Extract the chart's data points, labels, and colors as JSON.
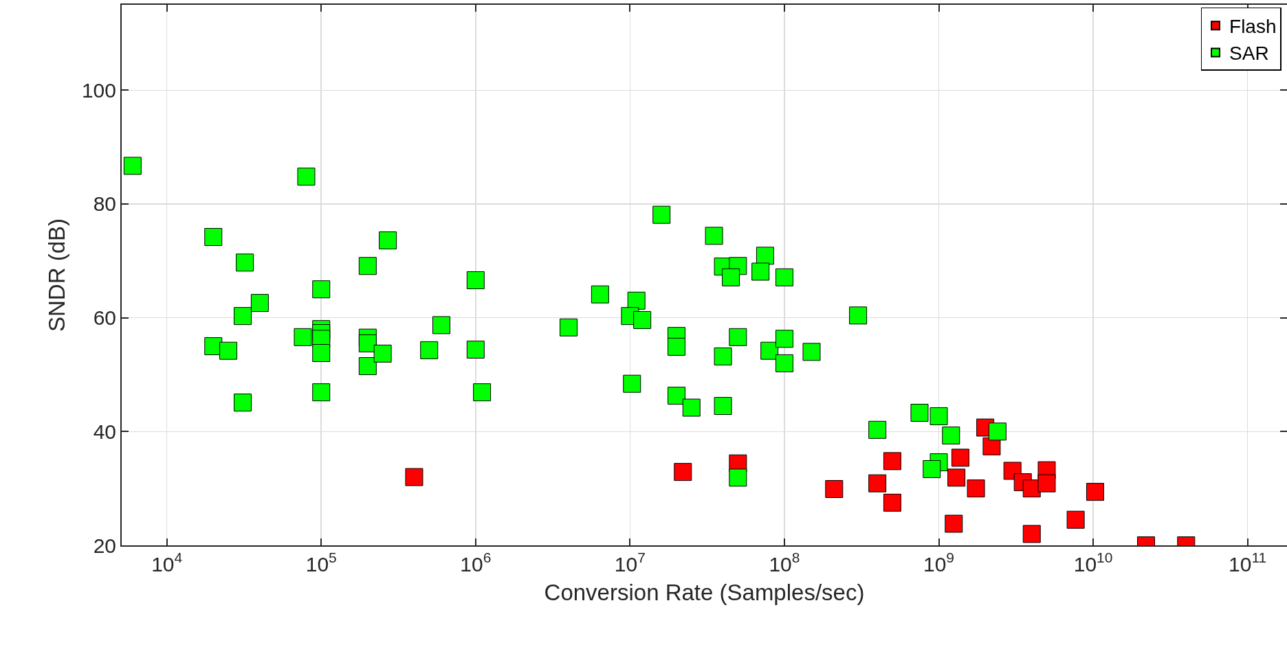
{
  "chart_data": {
    "type": "scatter",
    "xlabel": "Conversion Rate (Samples/sec)",
    "ylabel": "SNDR (dB)",
    "log": "x",
    "grid": true,
    "legend": "top right",
    "marker": "square",
    "xlim": [
      5100,
      180000000000
    ],
    "ylim": [
      20,
      115
    ],
    "xticks": [
      {
        "value": 10000,
        "label": "10$^{4}$"
      },
      {
        "value": 100000,
        "label": "10$^{5}$"
      },
      {
        "value": 1000000,
        "label": "10$^{6}$"
      },
      {
        "value": 10000000,
        "label": "10$^{7}$"
      },
      {
        "value": 100000000,
        "label": "10$^{8}$"
      },
      {
        "value": 1000000000,
        "label": "10$^{9}$"
      },
      {
        "value": 10000000000,
        "label": "10$^{10}$"
      },
      {
        "value": 100000000000,
        "label": "10$^{11}$"
      }
    ],
    "yticks": [
      20,
      40,
      60,
      80,
      100
    ],
    "series": [
      {
        "name": "Flash",
        "color": "#ff0000",
        "x": [
          400000,
          22000000,
          50000000,
          210000000,
          400000000,
          500000000,
          500000000,
          2000000000,
          2200000000,
          1380000000,
          1300000000,
          1740000000,
          3000000000,
          3500000000,
          4000000000,
          5000000000,
          5000000000,
          1250000000,
          4000000000,
          7700000000,
          10300000000,
          22000000000,
          40000000000
        ],
        "values": [
          32.0,
          32.9,
          34.4,
          29.9,
          30.9,
          34.8,
          27.5,
          40.7,
          37.4,
          35.4,
          31.9,
          30.0,
          33.1,
          31.1,
          30.0,
          33.2,
          30.9,
          23.8,
          22.0,
          24.5,
          29.4,
          20.0,
          20.0
        ]
      },
      {
        "name": "SAR",
        "color": "#00ff00",
        "x": [
          6000,
          80000,
          20000,
          32000,
          270000,
          200000,
          100000,
          1000000,
          40000,
          31000,
          600000,
          20000,
          25000,
          76000,
          100000,
          100000,
          100000,
          100000,
          100000,
          31000,
          200000,
          200000,
          200000,
          250000,
          500000,
          1000000,
          1100000,
          16000000,
          35000000,
          75000000,
          40000000,
          50000000,
          45000000,
          70000000,
          100000000,
          6400000,
          11000000,
          10000000,
          12000000,
          4000000,
          300000000,
          20000000,
          20000000,
          50000000,
          40000000,
          80000000,
          100000000,
          100000000,
          150000000,
          10300000,
          20000000,
          25000000,
          40000000,
          400000000,
          50000000,
          750000000,
          1000000000,
          1200000000,
          2400000000,
          1000000000,
          900000000
        ],
        "values": [
          86.7,
          84.8,
          74.2,
          69.7,
          73.6,
          69.1,
          65.0,
          66.6,
          62.6,
          60.3,
          58.7,
          55.0,
          54.2,
          56.6,
          58.0,
          57.3,
          56.3,
          53.8,
          46.9,
          45.1,
          56.5,
          55.5,
          51.5,
          53.7,
          54.3,
          54.4,
          46.9,
          78.1,
          74.4,
          70.9,
          69.0,
          69.1,
          67.1,
          68.1,
          67.1,
          64.1,
          63.0,
          60.3,
          59.6,
          58.3,
          60.4,
          56.8,
          54.9,
          56.6,
          53.2,
          54.2,
          56.3,
          52.0,
          54.0,
          48.4,
          46.3,
          44.2,
          44.5,
          40.3,
          31.9,
          43.3,
          42.7,
          39.3,
          40.0,
          34.6,
          33.4
        ]
      }
    ]
  }
}
